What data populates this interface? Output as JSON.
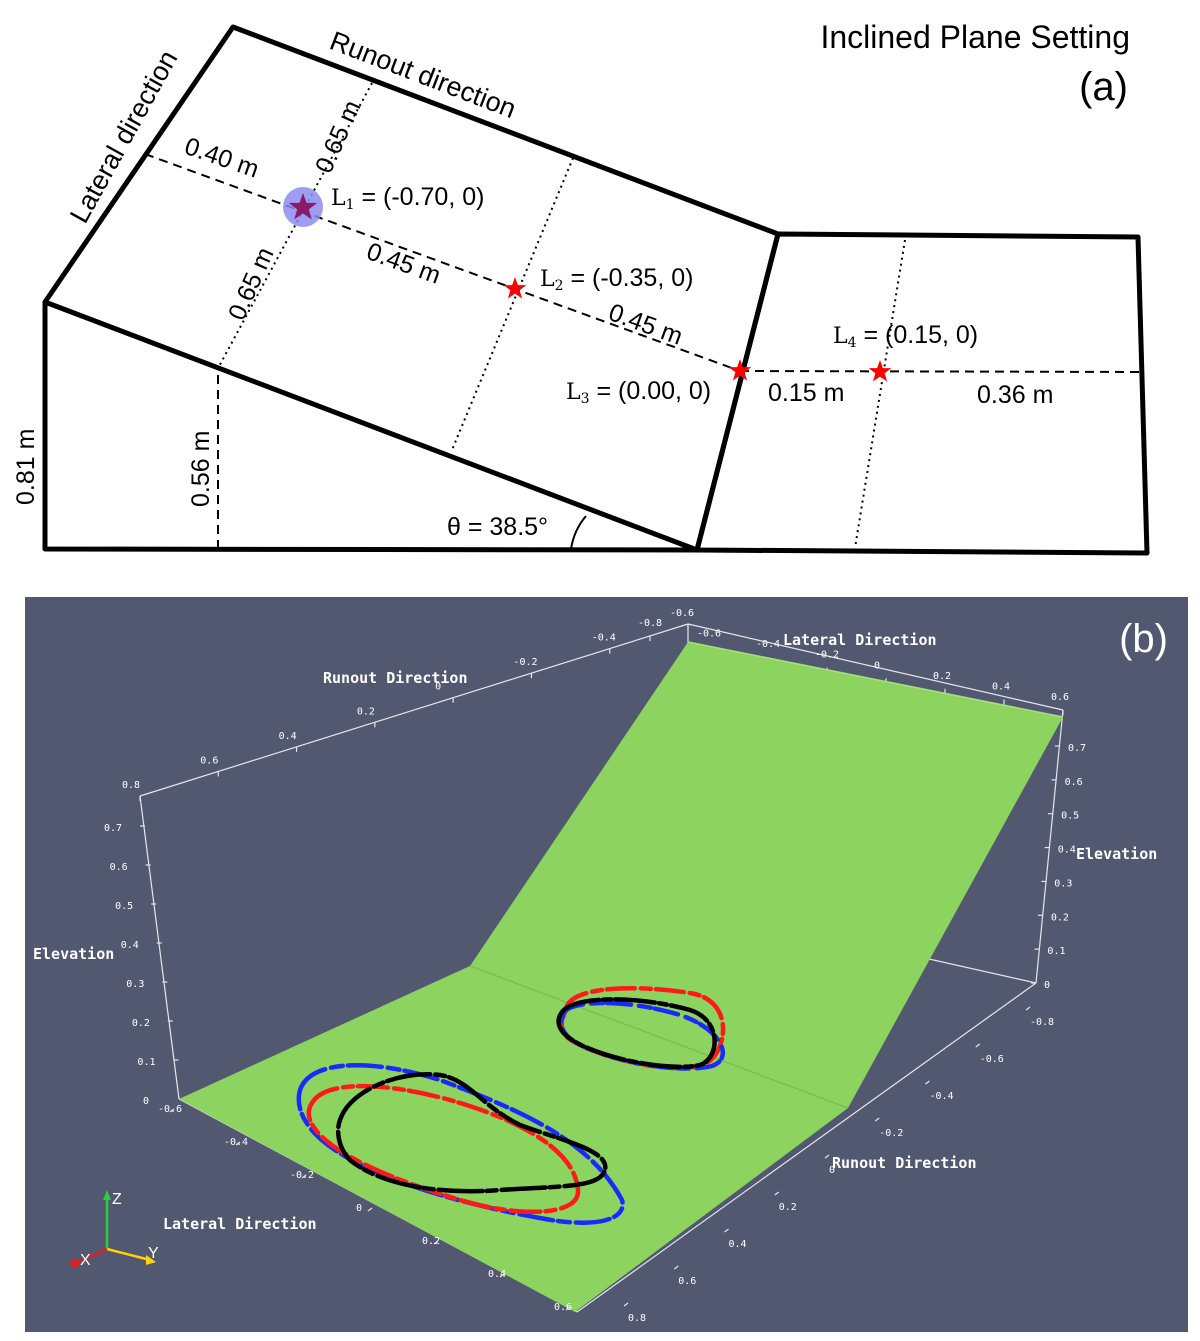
{
  "panel_a": {
    "title": "Inclined Plane Setting",
    "panel_label": "(a)",
    "runout_direction_label": "Runout direction",
    "lateral_direction_label": "Lateral direction",
    "dimensions": {
      "left_top_offset": "0.40 m",
      "upper_half_width": "0.65 m",
      "lower_half_width": "0.65 m",
      "l1_l2_spacing": "0.45 m",
      "l2_l3_spacing": "0.45 m",
      "l3_l4_spacing": "0.15 m",
      "l4_to_end": "0.36 m",
      "total_height": "0.81 m",
      "mid_height": "0.56 m",
      "slope_angle": "θ = 38.5°"
    },
    "release_locations": [
      {
        "id": "L1",
        "letter": "L",
        "sub": "1",
        "coords": " = (-0.70, 0)",
        "highlighted": true
      },
      {
        "id": "L2",
        "letter": "L",
        "sub": "2",
        "coords": " = (-0.35, 0)",
        "highlighted": false
      },
      {
        "id": "L3",
        "letter": "L",
        "sub": "3",
        "coords": " = (0.00, 0)",
        "highlighted": false
      },
      {
        "id": "L4",
        "letter": "L",
        "sub": "4",
        "coords": " = (0.15, 0)",
        "highlighted": false
      }
    ],
    "colors": {
      "outline": "#000000",
      "star": "#ff0000",
      "l1_star": "#8b1a6b",
      "l1_halo": "#8c8cf0"
    }
  },
  "panel_b": {
    "panel_label": "(b)",
    "background_color": "#525870",
    "plane_color": "#8dd35f",
    "axis_titles": {
      "runout_top": "Runout Direction",
      "lateral_top": "Lateral Direction",
      "elevation_left": "Elevation",
      "elevation_right": "Elevation",
      "runout_right": "Runout Direction",
      "lateral_bottom": "Lateral Direction"
    },
    "ticks": {
      "runout_top": [
        "-0.6",
        "-0.4",
        "-0.2",
        "0",
        "0.2",
        "0.4",
        "0.6",
        "0.8"
      ],
      "lateral_top": [
        "-0.8",
        "-0.6",
        "-0.4",
        "-0.2",
        "0",
        "0.2",
        "0.4",
        "0.6"
      ],
      "elevation_left": [
        "0",
        "0.1",
        "0.2",
        "0.3",
        "0.4",
        "0.5",
        "0.6",
        "0.7"
      ],
      "elevation_right": [
        "0",
        "0.1",
        "0.2",
        "0.3",
        "0.4",
        "0.5",
        "0.6",
        "0.7"
      ],
      "runout_right": [
        "-0.8",
        "-0.6",
        "-0.4",
        "-0.2",
        "0",
        "0.2",
        "0.4",
        "0.6",
        "0.8"
      ],
      "lateral_bottom": [
        "-0.6",
        "-0.4",
        "-0.2",
        "0",
        "0.2",
        "0.4",
        "0.6"
      ]
    },
    "orientation_axes": [
      "X",
      "Y",
      "Z"
    ],
    "deposit_outline_colors": {
      "red": "#ff1a1a",
      "black": "#000000",
      "blue": "#1a2aff"
    }
  }
}
